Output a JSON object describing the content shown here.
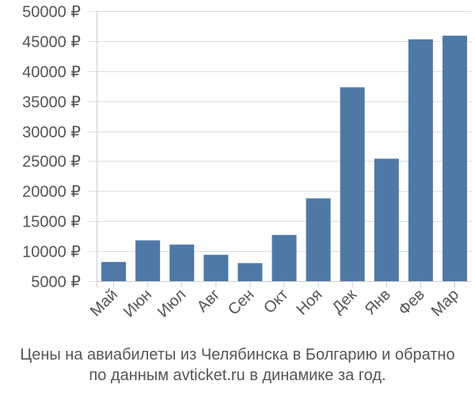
{
  "chart_data": {
    "type": "bar",
    "title": "",
    "xlabel": "",
    "ylabel": "",
    "currency_symbol": "₽",
    "categories": [
      "Май",
      "Июн",
      "Июл",
      "Авг",
      "Сен",
      "Окт",
      "Ноя",
      "Дек",
      "Янв",
      "Фев",
      "Мар"
    ],
    "values": [
      8200,
      11800,
      11100,
      9400,
      8000,
      12700,
      18800,
      37300,
      25400,
      45300,
      45900
    ],
    "ylim": [
      5000,
      50000
    ],
    "yticks": [
      5000,
      10000,
      15000,
      20000,
      25000,
      30000,
      35000,
      40000,
      45000,
      50000
    ],
    "bar_color": "#4e79a7",
    "grid": true
  },
  "caption": {
    "line1": "Цены на авиабилеты из Челябинска в Болгарию и обратно",
    "line2": "по данным avticket.ru в динамике за год."
  }
}
